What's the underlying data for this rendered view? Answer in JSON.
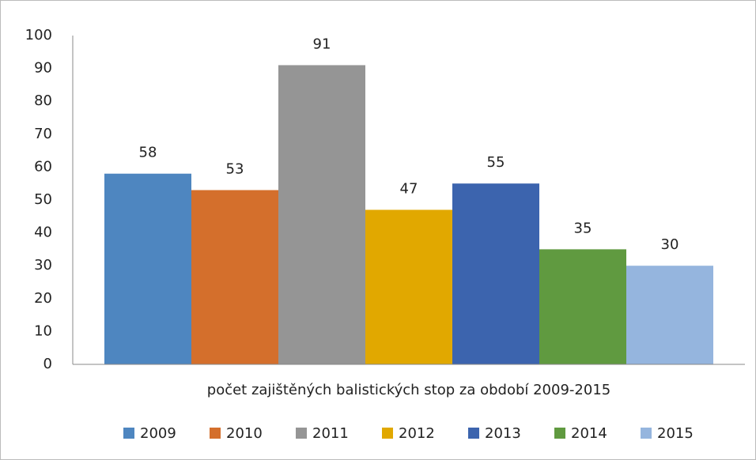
{
  "chart_data": {
    "type": "bar",
    "categories": [
      "počet zajištěných balistických stop za období 2009-2015"
    ],
    "series": [
      {
        "name": "2009",
        "color": "#4e86c0",
        "values": [
          58
        ]
      },
      {
        "name": "2010",
        "color": "#d46f2c",
        "values": [
          53
        ]
      },
      {
        "name": "2011",
        "color": "#959595",
        "values": [
          91
        ]
      },
      {
        "name": "2012",
        "color": "#e1a800",
        "values": [
          47
        ]
      },
      {
        "name": "2013",
        "color": "#3c64ae",
        "values": [
          55
        ]
      },
      {
        "name": "2014",
        "color": "#609a40",
        "values": [
          35
        ]
      },
      {
        "name": "2015",
        "color": "#95b5de",
        "values": [
          30
        ]
      }
    ],
    "ylim": [
      0,
      100
    ],
    "yticks": [
      0,
      10,
      20,
      30,
      40,
      50,
      60,
      70,
      80,
      90,
      100
    ],
    "grid": false,
    "legend": "bottom"
  }
}
